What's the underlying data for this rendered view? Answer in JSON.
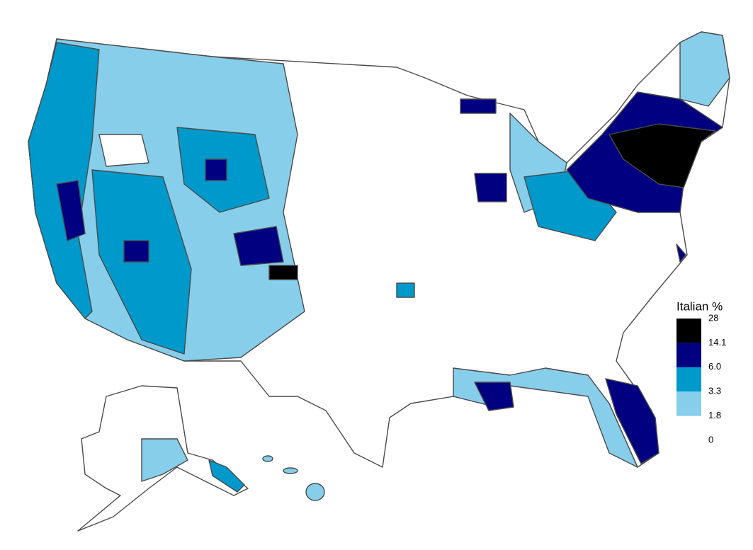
{
  "map": {
    "legend": {
      "title": "Italian %",
      "breaks": [
        0,
        1.8,
        3.3,
        {
          "value": 6,
          "label": "6.0"
        },
        14.1,
        28
      ],
      "colors": [
        "#ffffff",
        "#87ceeb",
        "#0099cc",
        "#000080",
        "#000000"
      ]
    }
  }
}
